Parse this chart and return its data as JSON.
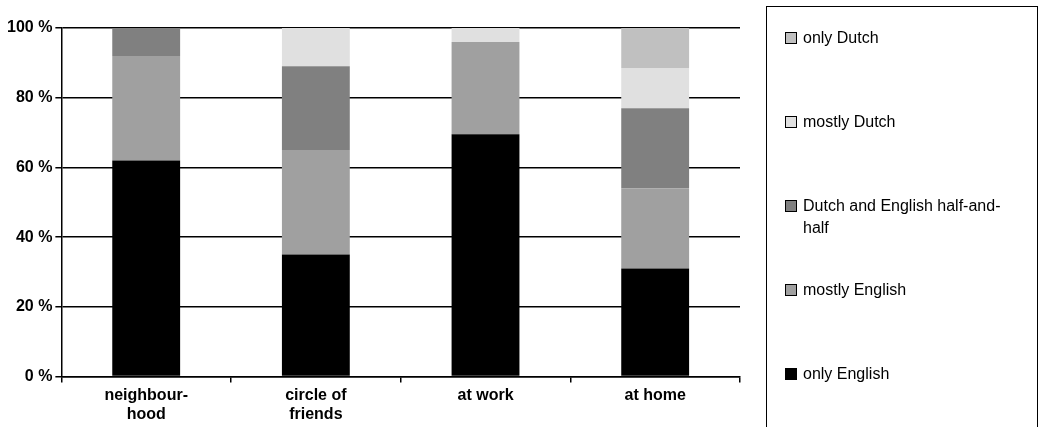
{
  "chart_data": {
    "type": "bar",
    "stacked": true,
    "categories": [
      "neighbour-hood",
      "circle of friends",
      "at work",
      "at home"
    ],
    "series": [
      {
        "name": "only English",
        "color": "#000000",
        "values": [
          62,
          35,
          69.5,
          31
        ]
      },
      {
        "name": "mostly English",
        "color": "#a0a0a0",
        "values": [
          30,
          30,
          26.5,
          23
        ]
      },
      {
        "name": "Dutch and English half-and-half",
        "color": "#808080",
        "values": [
          8,
          24,
          0,
          23
        ]
      },
      {
        "name": "mostly Dutch",
        "color": "#e0e0e0",
        "values": [
          0,
          11,
          4,
          11.5
        ]
      },
      {
        "name": "only Dutch",
        "color": "#c0c0c0",
        "values": [
          0,
          0,
          0,
          11.5
        ]
      }
    ],
    "ylim": [
      0,
      100
    ],
    "yticks": [
      {
        "value": 0,
        "label": "0 %"
      },
      {
        "value": 20,
        "label": "20 %"
      },
      {
        "value": 40,
        "label": "40 %"
      },
      {
        "value": 60,
        "label": "60 %"
      },
      {
        "value": 80,
        "label": "80 %"
      },
      {
        "value": 100,
        "label": "100 %"
      }
    ],
    "grid": "y",
    "legend": "right"
  }
}
